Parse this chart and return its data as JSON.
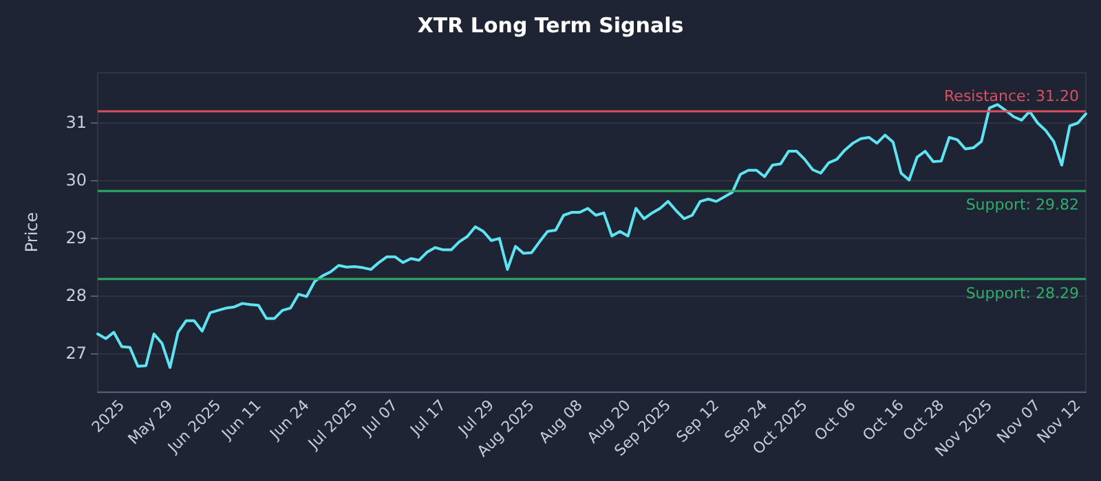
{
  "chart_data": {
    "type": "line",
    "title": "XTR Long Term Signals",
    "ylabel": "Price",
    "categories": [
      null,
      null,
      null,
      "2025",
      null,
      null,
      null,
      null,
      null,
      "May 29",
      null,
      null,
      null,
      null,
      null,
      "Jun 2025",
      null,
      null,
      null,
      null,
      "Jun 11",
      null,
      null,
      null,
      null,
      null,
      "Jun 24",
      null,
      null,
      null,
      null,
      null,
      "Jul 2025",
      null,
      null,
      null,
      null,
      "Jul 07",
      null,
      null,
      null,
      null,
      null,
      "Jul 17",
      null,
      null,
      null,
      null,
      null,
      "Jul 29",
      null,
      null,
      null,
      null,
      "Aug 2025",
      null,
      null,
      null,
      null,
      null,
      "Aug 08",
      null,
      null,
      null,
      null,
      null,
      "Aug 20",
      null,
      null,
      null,
      null,
      "Sep 2025",
      null,
      null,
      null,
      null,
      null,
      "Sep 12",
      null,
      null,
      null,
      null,
      null,
      "Sep 24",
      null,
      null,
      null,
      null,
      "Oct 2025",
      null,
      null,
      null,
      null,
      null,
      "Oct 06",
      null,
      null,
      null,
      null,
      null,
      "Oct 16",
      null,
      null,
      null,
      null,
      "Oct 28",
      null,
      null,
      null,
      null,
      null,
      "Nov 2025",
      null,
      null,
      null,
      null,
      null,
      "Nov 07",
      null,
      null,
      null,
      null,
      "Nov 12",
      null
    ],
    "series": [
      {
        "color": "#5ee3f2",
        "values": [
          27.33,
          27.25,
          27.36,
          27.11,
          27.1,
          26.77,
          26.78,
          27.33,
          27.17,
          26.75,
          27.36,
          27.56,
          27.56,
          27.38,
          27.7,
          27.74,
          27.78,
          27.8,
          27.86,
          27.84,
          27.83,
          27.6,
          27.6,
          27.74,
          27.78,
          28.02,
          27.98,
          28.24,
          28.34,
          28.41,
          28.52,
          28.49,
          28.5,
          28.48,
          28.45,
          28.57,
          28.67,
          28.67,
          28.57,
          28.64,
          28.61,
          28.75,
          28.83,
          28.79,
          28.79,
          28.93,
          29.02,
          29.19,
          29.11,
          28.95,
          28.99,
          28.45,
          28.85,
          28.73,
          28.74,
          28.93,
          29.11,
          29.13,
          29.39,
          29.44,
          29.44,
          29.51,
          29.39,
          29.43,
          29.03,
          29.11,
          29.03,
          29.51,
          29.33,
          29.43,
          29.51,
          29.63,
          29.47,
          29.33,
          29.39,
          29.63,
          29.67,
          29.63,
          29.71,
          29.79,
          30.1,
          30.17,
          30.17,
          30.06,
          30.26,
          30.28,
          30.5,
          30.5,
          30.36,
          30.18,
          30.12,
          30.3,
          30.36,
          30.52,
          30.64,
          30.72,
          30.74,
          30.64,
          30.78,
          30.66,
          30.12,
          30.0,
          30.4,
          30.5,
          30.32,
          30.33,
          30.74,
          30.7,
          30.54,
          30.56,
          30.67,
          31.25,
          31.31,
          31.21,
          31.1,
          31.04,
          31.19,
          30.99,
          30.86,
          30.67,
          30.26,
          30.94,
          30.99,
          31.15
        ]
      }
    ],
    "ylim": [
      26.33,
      31.86
    ],
    "yticks": [
      27,
      28,
      29,
      30,
      31
    ],
    "grid": "y",
    "marker": "none",
    "line_style": "solid",
    "ref_lines": [
      {
        "axis": "y",
        "value": 31.2,
        "label": "Resistance: 31.20",
        "color": "#d9505f"
      },
      {
        "axis": "y",
        "value": 29.82,
        "label": "Support: 29.82",
        "color": "#2fae6a"
      },
      {
        "axis": "y",
        "value": 28.29,
        "label": "Support: 28.29",
        "color": "#2fae6a"
      }
    ]
  }
}
